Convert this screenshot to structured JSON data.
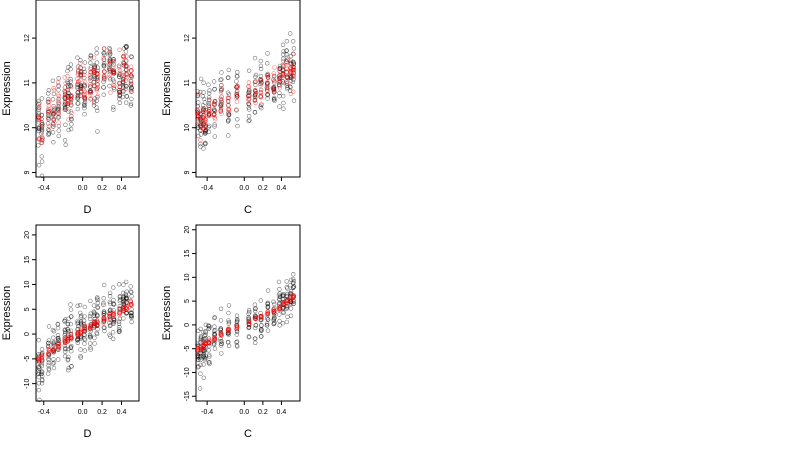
{
  "colors": {
    "observed": "#000000",
    "fitted": "#ff0000"
  },
  "chart_data": [
    {
      "type": "scatter",
      "xlabel": "D",
      "ylabel": "Expression",
      "xlim": [
        -0.48,
        0.58
      ],
      "ylim": [
        8.9,
        12.85
      ],
      "xticks": [
        -0.4,
        0.0,
        0.2,
        0.4
      ],
      "xtick_labels": [
        "-0.4",
        "0.0",
        "0.2",
        "0.4"
      ],
      "yticks": [
        9,
        10,
        11,
        12
      ],
      "ytick_labels": [
        "9",
        "10",
        "11",
        "12"
      ],
      "x_levels": [
        -0.45,
        -0.42,
        -0.35,
        -0.3,
        -0.25,
        -0.18,
        -0.15,
        -0.12,
        -0.05,
        -0.02,
        0.02,
        0.08,
        0.12,
        0.15,
        0.22,
        0.28,
        0.32,
        0.38,
        0.42,
        0.45,
        0.5
      ],
      "series": [
        {
          "role": "observed",
          "level_center": [
            10.1,
            9.9,
            10.2,
            10.3,
            10.5,
            10.6,
            10.7,
            10.6,
            10.9,
            11.0,
            10.8,
            11.1,
            11.0,
            10.9,
            11.2,
            11.3,
            11.1,
            11.0,
            11.2,
            11.1,
            10.9
          ],
          "spread": 0.65,
          "per_level": 16
        },
        {
          "role": "fitted",
          "level_center": [
            10.15,
            10.0,
            10.35,
            10.45,
            10.6,
            10.7,
            10.75,
            10.7,
            10.95,
            11.05,
            10.85,
            11.15,
            11.05,
            11.0,
            11.25,
            11.3,
            11.15,
            11.1,
            11.25,
            11.15,
            11.0
          ],
          "spread": 0.45,
          "per_level": 9
        }
      ]
    },
    {
      "type": "scatter",
      "xlabel": "C",
      "ylabel": "Expression",
      "xlim": [
        -0.52,
        0.6
      ],
      "ylim": [
        8.9,
        12.85
      ],
      "xticks": [
        -0.4,
        0.0,
        0.2,
        0.4
      ],
      "xtick_labels": [
        "-0.4",
        "0.0",
        "0.2",
        "0.4"
      ],
      "yticks": [
        9,
        10,
        11,
        12
      ],
      "ytick_labels": [
        "9",
        "10",
        "11",
        "12"
      ],
      "x_levels": [
        -0.5,
        -0.47,
        -0.44,
        -0.42,
        -0.38,
        -0.32,
        -0.25,
        -0.17,
        -0.08,
        0.05,
        0.12,
        0.18,
        0.25,
        0.32,
        0.38,
        0.42,
        0.46,
        0.5,
        0.53
      ],
      "series": [
        {
          "role": "observed",
          "level_center": [
            10.3,
            10.1,
            10.2,
            10.0,
            10.3,
            10.4,
            10.6,
            10.6,
            10.8,
            10.6,
            10.7,
            10.9,
            11.0,
            10.9,
            11.1,
            11.2,
            11.3,
            11.2,
            11.3
          ],
          "spread": 0.55,
          "per_level": 15
        },
        {
          "role": "fitted",
          "level_center": [
            10.3,
            10.2,
            10.2,
            10.1,
            10.3,
            10.4,
            10.55,
            10.6,
            10.75,
            10.7,
            10.75,
            10.9,
            10.95,
            11.0,
            11.1,
            11.2,
            11.3,
            11.25,
            11.35
          ],
          "spread": 0.3,
          "per_level": 9
        }
      ]
    },
    {
      "type": "scatter",
      "xlabel": "D",
      "ylabel": "Expression",
      "xlim": [
        -0.48,
        0.58
      ],
      "ylim": [
        -13.5,
        22
      ],
      "xticks": [
        -0.4,
        0.0,
        0.2,
        0.4
      ],
      "xtick_labels": [
        "-0.4",
        "0.0",
        "0.2",
        "0.4"
      ],
      "yticks": [
        -10,
        -5,
        0,
        5,
        10,
        15,
        20
      ],
      "ytick_labels": [
        "-10",
        "-5",
        "0",
        "5",
        "10",
        "15",
        "20"
      ],
      "x_levels": [
        -0.45,
        -0.42,
        -0.35,
        -0.3,
        -0.25,
        -0.18,
        -0.15,
        -0.12,
        -0.05,
        -0.02,
        0.02,
        0.08,
        0.12,
        0.15,
        0.22,
        0.28,
        0.32,
        0.38,
        0.42,
        0.45,
        0.5
      ],
      "series": [
        {
          "role": "observed",
          "level_center": [
            -5.5,
            -5,
            -4,
            -3,
            -2,
            -1.5,
            -1,
            -0.5,
            0,
            0.5,
            1,
            1.5,
            2,
            2.5,
            3,
            3.5,
            4,
            4.5,
            5,
            5.5,
            6
          ],
          "spread": 4.5,
          "per_level": 16
        },
        {
          "role": "fitted",
          "level_center": [
            -5.2,
            -4.7,
            -3.8,
            -3.0,
            -2.2,
            -1.5,
            -1.1,
            -0.6,
            0.0,
            0.4,
            0.9,
            1.5,
            1.9,
            2.3,
            2.9,
            3.4,
            3.9,
            4.4,
            4.9,
            5.3,
            5.9
          ],
          "spread": 0.6,
          "per_level": 7
        }
      ]
    },
    {
      "type": "scatter",
      "xlabel": "C",
      "ylabel": "Expression",
      "xlim": [
        -0.52,
        0.6
      ],
      "ylim": [
        -16,
        21
      ],
      "xticks": [
        -0.4,
        0.0,
        0.2,
        0.4
      ],
      "xtick_labels": [
        "-0.4",
        "0.0",
        "0.2",
        "0.4"
      ],
      "yticks": [
        -15,
        -10,
        -5,
        0,
        5,
        10,
        15,
        20
      ],
      "ytick_labels": [
        "-15",
        "-10",
        "-5",
        "0",
        "5",
        "10",
        "15",
        "20"
      ],
      "x_levels": [
        -0.5,
        -0.47,
        -0.44,
        -0.42,
        -0.38,
        -0.32,
        -0.25,
        -0.17,
        -0.08,
        0.05,
        0.12,
        0.18,
        0.25,
        0.32,
        0.38,
        0.42,
        0.46,
        0.5,
        0.53
      ],
      "series": [
        {
          "role": "observed",
          "level_center": [
            -5.2,
            -5,
            -4.5,
            -4,
            -3.5,
            -3,
            -2,
            -1.5,
            -0.5,
            0.5,
            1,
            1.5,
            2,
            2.5,
            3.5,
            4.5,
            5,
            5.5,
            6
          ],
          "spread": 4.2,
          "per_level": 15
        },
        {
          "role": "fitted",
          "level_center": [
            -5.0,
            -4.8,
            -4.3,
            -4.0,
            -3.5,
            -2.8,
            -2.0,
            -1.2,
            -0.4,
            0.6,
            1.2,
            1.7,
            2.3,
            2.9,
            3.6,
            4.3,
            4.9,
            5.4,
            5.8
          ],
          "spread": 0.5,
          "per_level": 7
        }
      ]
    }
  ]
}
